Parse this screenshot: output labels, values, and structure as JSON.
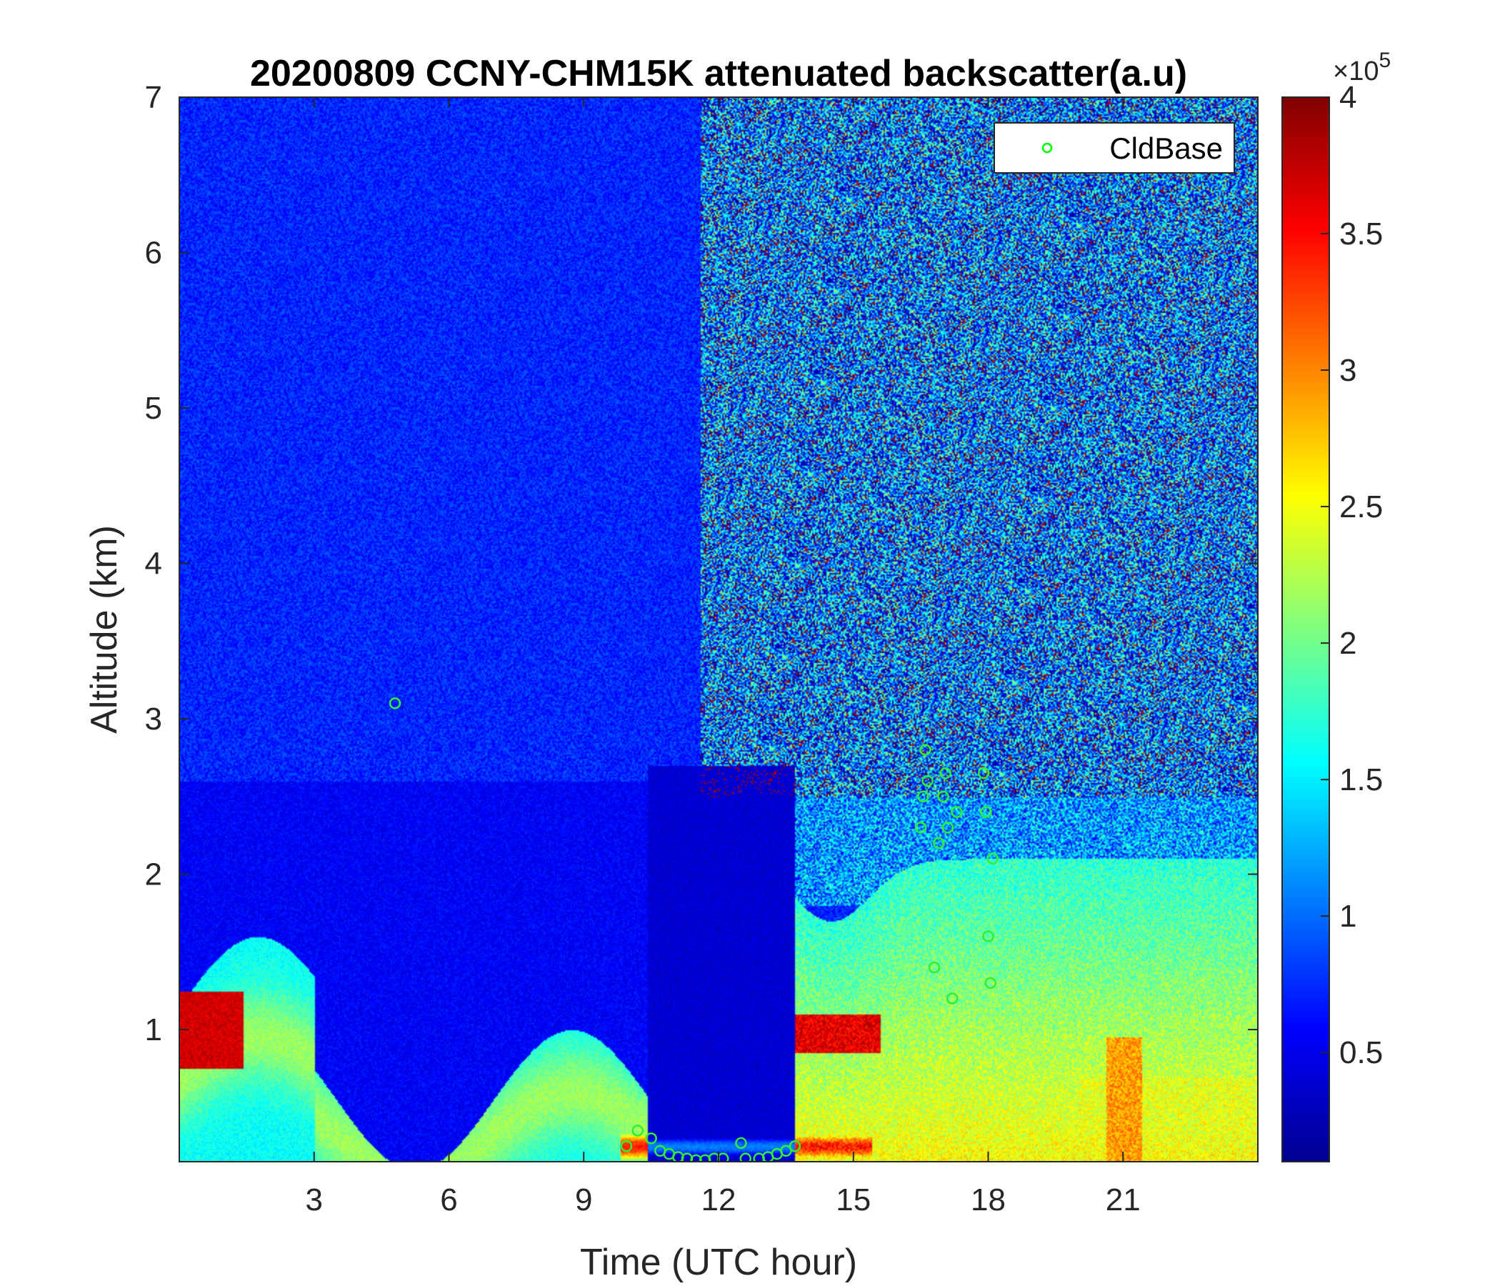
{
  "chart_data": {
    "type": "heatmap",
    "title": "20200809 CCNY-CHM15K attenuated backscatter(a.u)",
    "xlabel": "Time (UTC hour)",
    "ylabel": "Altitude (km)",
    "xlim": [
      0,
      24
    ],
    "ylim": [
      0.15,
      7
    ],
    "xticks": [
      3,
      6,
      9,
      12,
      15,
      18,
      21
    ],
    "xtick_labels": [
      "3",
      "6",
      "9",
      "12",
      "15",
      "18",
      "21"
    ],
    "yticks": [
      1,
      2,
      3,
      4,
      5,
      6,
      7
    ],
    "ytick_labels": [
      "1",
      "2",
      "3",
      "4",
      "5",
      "6",
      "7"
    ],
    "colormap": "jet",
    "colorbar": {
      "min": 0.1,
      "max": 4,
      "ticks": [
        0.5,
        1,
        1.5,
        2,
        2.5,
        3,
        3.5,
        4
      ],
      "tick_labels": [
        "0.5",
        "1",
        "1.5",
        "2",
        "2.5",
        "3",
        "3.5",
        "4"
      ],
      "multiplier": "×10",
      "exponent": "5"
    },
    "legend": {
      "location": "top-right",
      "entries": [
        {
          "name": "CldBase",
          "marker": "circle",
          "color": "#00ff00"
        }
      ]
    },
    "series": [
      {
        "name": "CldBase",
        "marker": "circle",
        "color": "#33ee33",
        "x": [
          4.8,
          9.95,
          10.2,
          10.5,
          10.7,
          10.9,
          11.1,
          11.3,
          11.5,
          11.7,
          11.9,
          12.1,
          12.5,
          12.6,
          12.9,
          13.1,
          13.3,
          13.5,
          13.7,
          16.5,
          16.55,
          16.6,
          16.65,
          16.8,
          16.9,
          17.0,
          17.05,
          17.1,
          17.2,
          17.3,
          17.9,
          17.95,
          18.0,
          18.05,
          18.1
        ],
        "y": [
          3.1,
          0.25,
          0.35,
          0.3,
          0.22,
          0.2,
          0.18,
          0.17,
          0.16,
          0.16,
          0.17,
          0.17,
          0.27,
          0.17,
          0.17,
          0.18,
          0.2,
          0.22,
          0.25,
          2.3,
          2.5,
          2.8,
          2.6,
          1.4,
          2.2,
          2.5,
          2.65,
          2.3,
          1.2,
          2.4,
          2.65,
          2.4,
          1.6,
          1.3,
          2.1
        ]
      }
    ]
  }
}
